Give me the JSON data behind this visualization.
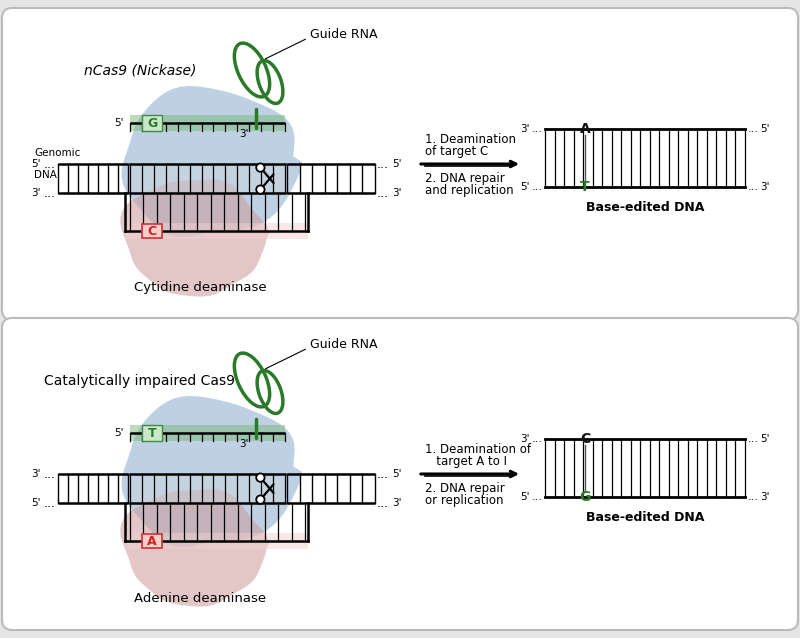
{
  "bg_color": "#e5e5e5",
  "panel_bg": "#ffffff",
  "panel_border": "#bbbbbb",
  "panel1": {
    "title": "nCas9 (Nickase)",
    "title_italic": true,
    "guide_rna_label": "Guide RNA",
    "genomic_label_line1": "Genomic",
    "genomic_label_line2": "DNA",
    "deaminase_label": "Cytidine deaminase",
    "step1_line1": "1. Deamination",
    "step1_line2": "of target C",
    "step2_line1": "2. DNA repair",
    "step2_line2": "and replication",
    "base_edited_label": "Base-edited DNA",
    "top_base": "G",
    "top_base_color": "#2a7a2a",
    "bottom_base": "C",
    "bottom_base_color": "#cc2222",
    "result_top_base": "A",
    "result_top_base_color": "#111111",
    "result_bottom_base": "T",
    "result_bottom_base_color": "#2a7a2a",
    "cas9_color_blue": "#8aaccc",
    "cas9_color_pink": "#cc9999",
    "guide_color": "#2a7a2a",
    "prime_left_top": "5'",
    "prime_left_bot": "3'",
    "prime_right_top": "5'",
    "prime_right_bot": "3'",
    "prime_be_left_top": "3'",
    "prime_be_left_bot": "5'",
    "prime_be_right_top": "5'",
    "prime_be_right_bot": "3'",
    "has_genomic_label": true
  },
  "panel2": {
    "title": "Catalytically impaired Cas9",
    "title_italic": false,
    "guide_rna_label": "Guide RNA",
    "genomic_label_line1": "",
    "genomic_label_line2": "",
    "deaminase_label": "Adenine deaminase",
    "step1_line1": "1. Deamination of",
    "step1_line2": "   target A to I",
    "step2_line1": "2. DNA repair",
    "step2_line2": "or replication",
    "base_edited_label": "Base-edited DNA",
    "top_base": "T",
    "top_base_color": "#2a7a2a",
    "bottom_base": "A",
    "bottom_base_color": "#cc2222",
    "result_top_base": "C",
    "result_top_base_color": "#111111",
    "result_bottom_base": "G",
    "result_bottom_base_color": "#2a7a2a",
    "cas9_color_blue": "#8aaccc",
    "cas9_color_pink": "#cc9999",
    "guide_color": "#2a7a2a",
    "prime_left_top": "3'",
    "prime_left_bot": "5'",
    "prime_right_top": "5'",
    "prime_right_bot": "3'",
    "prime_be_left_top": "3'",
    "prime_be_left_bot": "5'",
    "prime_be_right_top": "5'",
    "prime_be_right_bot": "3'",
    "has_genomic_label": false
  }
}
